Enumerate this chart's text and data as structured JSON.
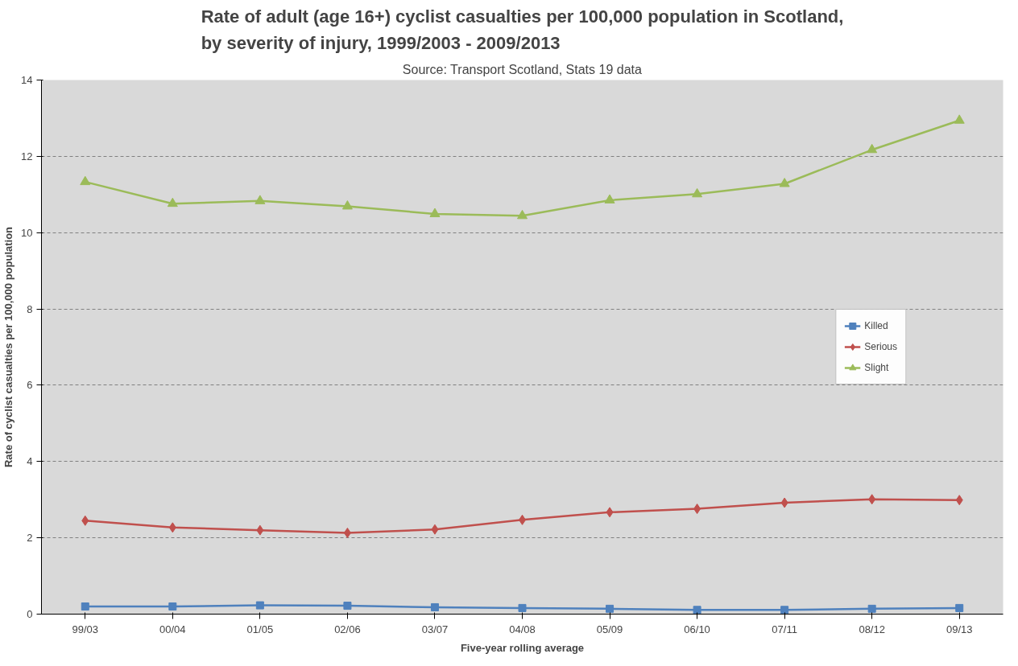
{
  "chart_data": {
    "type": "line",
    "title": "Rate of adult (age 16+) cyclist casualties per 100,000 population in Scotland,\nby severity of injury, 1999/2003 - 2009/2013",
    "annotations": [
      "Source: Transport Scotland, Stats 19 data"
    ],
    "xlabel": "Five-year rolling average",
    "ylabel": "Rate of cyclist casualties per 100,000 population",
    "categories": [
      "99/03",
      "00/04",
      "01/05",
      "02/06",
      "03/07",
      "04/08",
      "05/09",
      "06/10",
      "07/11",
      "08/12",
      "09/13"
    ],
    "series": [
      {
        "name": "Killed",
        "color": "#4f81bd",
        "marker": "square",
        "values": [
          0.2,
          0.2,
          0.23,
          0.22,
          0.18,
          0.16,
          0.14,
          0.11,
          0.11,
          0.14,
          0.16
        ]
      },
      {
        "name": "Serious",
        "color": "#c0504d",
        "marker": "diamond",
        "values": [
          2.45,
          2.27,
          2.2,
          2.13,
          2.22,
          2.47,
          2.67,
          2.76,
          2.92,
          3.01,
          2.99
        ]
      },
      {
        "name": "Slight",
        "color": "#9bbb59",
        "marker": "triangle",
        "values": [
          11.33,
          10.76,
          10.83,
          10.69,
          10.49,
          10.44,
          10.85,
          11.01,
          11.28,
          12.17,
          12.94
        ]
      }
    ],
    "ylim": [
      0,
      14
    ],
    "yticks": [
      0,
      2,
      4,
      6,
      8,
      10,
      12,
      14
    ],
    "grid": "y",
    "legend": "right",
    "line_style": "solid"
  }
}
